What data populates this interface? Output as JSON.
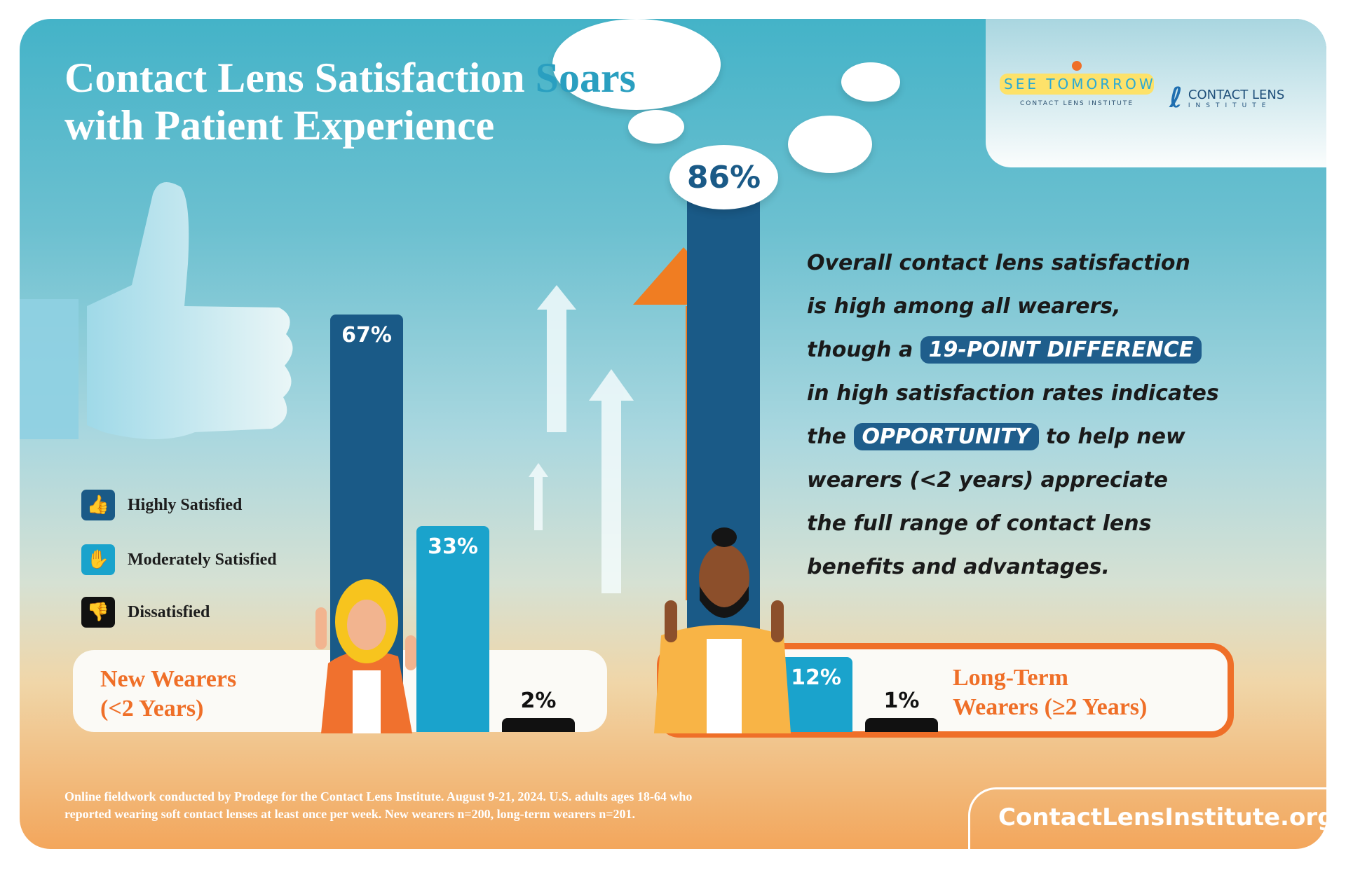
{
  "title": {
    "line1": "Contact Lens Satisfaction",
    "highlight": "Soars",
    "line2": "with Patient Experience"
  },
  "logos": {
    "see_tomorrow": "SEE TOMORROW",
    "see_tomorrow_sub": "CONTACT LENS INSTITUTE",
    "cli": "CONTACT LENS",
    "cli_sub": "INSTITUTE"
  },
  "colors": {
    "highly": "#1a5a87",
    "moderately": "#1aa3cc",
    "dissatisfied": "#111111",
    "accent": "#ef6f28"
  },
  "chart_data": {
    "type": "bar",
    "categories": [
      "New Wearers (<2 Years)",
      "Long-Term Wearers (≥2 Years)"
    ],
    "series": [
      {
        "name": "Highly Satisfied",
        "values": [
          67,
          86
        ],
        "labels": [
          "67%",
          "86%"
        ]
      },
      {
        "name": "Moderately Satisfied",
        "values": [
          33,
          12
        ],
        "labels": [
          "33%",
          "12%"
        ]
      },
      {
        "name": "Dissatisfied",
        "values": [
          2,
          1
        ],
        "labels": [
          "2%",
          "1%"
        ]
      }
    ],
    "legend": [
      "Highly Satisfied",
      "Moderately Satisfied",
      "Dissatisfied"
    ],
    "legend_position": "left"
  },
  "groups": {
    "new_line1": "New Wearers",
    "new_line2": "(<2 Years)",
    "long_line1": "Long-Term",
    "long_line2": "Wearers (≥2 Years)"
  },
  "paragraph": {
    "l1": "Overall contact lens satisfaction",
    "l2": "is high among all wearers,",
    "l3a": "though a",
    "l3h": "19-POINT DIFFERENCE",
    "l4": "in high satisfaction rates indicates",
    "l5a": "the",
    "l5h": "OPPORTUNITY",
    "l5b": "to help new",
    "l6": "wearers (<2 years) appreciate",
    "l7": "the full range of contact lens",
    "l8": "benefits and advantages."
  },
  "footer": {
    "note1": "Online fieldwork conducted by Prodege for the Contact Lens Institute. August 9-21, 2024. U.S. adults ages 18-64 who",
    "note2": "reported wearing soft contact lenses at least once per week. New wearers n=200, long-term wearers n=201.",
    "url": "ContactLensInstitute.org"
  }
}
